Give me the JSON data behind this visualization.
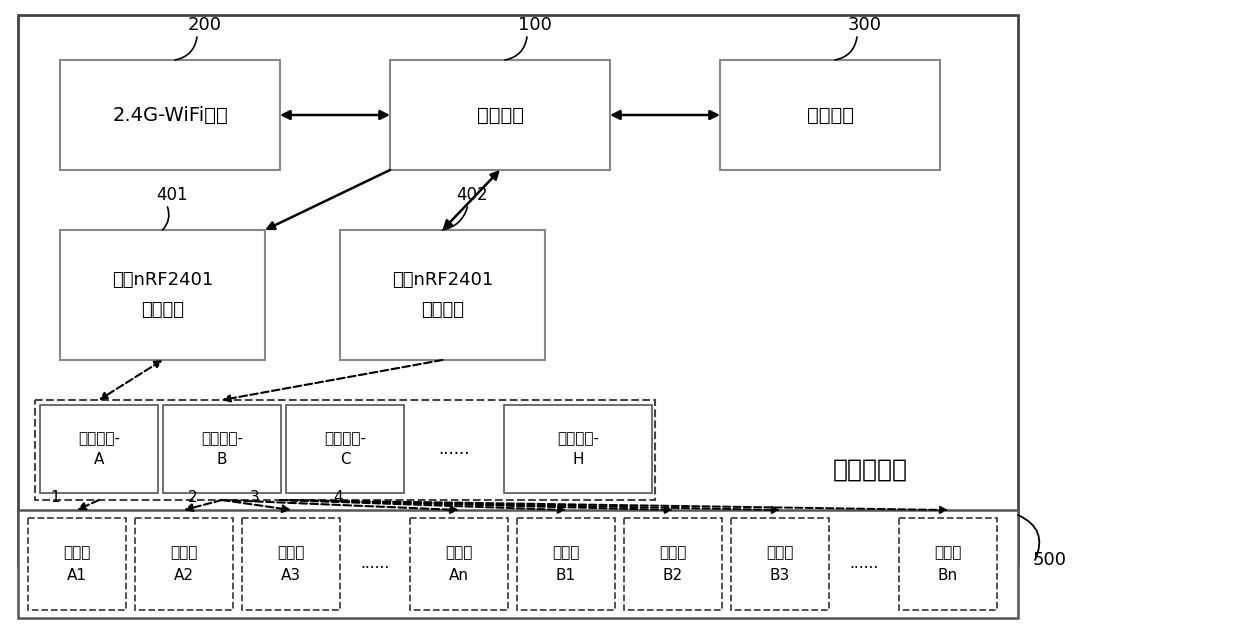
{
  "bg_color": "#ffffff",
  "figsize": [
    12.4,
    6.28
  ],
  "dpi": 100,
  "title_label": "物联网网关",
  "wifi_label": "2.4G-WiFi模块",
  "main_label": "主控模块",
  "storage_label": "存储模块",
  "nrf1_label": "第一nRF2401\n视频模块",
  "nrf2_label": "第二nRF2401\n视频模块",
  "channel_labels": [
    "优选信道-\nA",
    "优选信道-\nB",
    "优选信道-\nC",
    "......",
    "优选信道-\nH"
  ],
  "subnode_labels": [
    "子节点\nA1",
    "子节点\nA2",
    "子节点\nA3",
    "......",
    "子节点\nAn",
    "子节点\nB1",
    "子节点\nB2",
    "子节点\nB3",
    "......",
    "子节点\nBn"
  ],
  "ref_labels": [
    "200",
    "100",
    "300",
    "401",
    "402",
    "500"
  ]
}
